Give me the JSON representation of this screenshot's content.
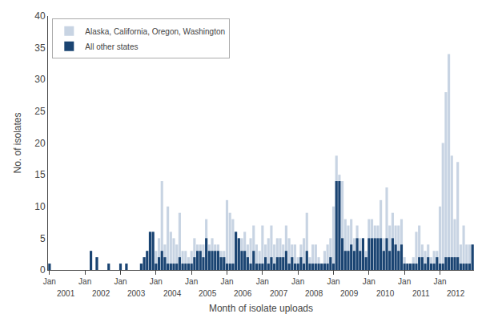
{
  "chart_data": {
    "type": "bar",
    "xlabel": "Month of isolate uploads",
    "ylabel": "No. of isolates",
    "categories": [
      "Jan",
      null,
      null,
      null,
      null,
      null,
      null,
      null,
      null,
      null,
      null,
      null,
      "Jan",
      null,
      null,
      null,
      null,
      null,
      null,
      null,
      null,
      null,
      null,
      null,
      "Jan",
      null,
      null,
      null,
      null,
      null,
      null,
      null,
      null,
      null,
      null,
      null,
      "Jan",
      null,
      null,
      null,
      null,
      null,
      null,
      null,
      null,
      null,
      null,
      null,
      "Jan",
      null,
      null,
      null,
      null,
      null,
      null,
      null,
      null,
      null,
      null,
      null,
      "Jan",
      null,
      null,
      null,
      null,
      null,
      null,
      null,
      null,
      null,
      null,
      null,
      "Jan",
      null,
      null,
      null,
      null,
      null,
      null,
      null,
      null,
      null,
      null,
      null,
      "Jan",
      null,
      null,
      null,
      null,
      null,
      null,
      null,
      null,
      null,
      null,
      null,
      "Jan",
      null,
      null,
      null,
      null,
      null,
      null,
      null,
      null,
      null,
      null,
      null,
      "Jan",
      null,
      null,
      null,
      null,
      null,
      null,
      null,
      null,
      null,
      null,
      null,
      "Jan",
      null,
      null,
      null,
      null,
      null,
      null,
      null,
      null,
      null,
      null,
      null,
      "Jan",
      null,
      null,
      null,
      null,
      null,
      null,
      null,
      null,
      null,
      null,
      null
    ],
    "annotations": [
      "2001",
      "2002",
      "2003",
      "2004",
      "2005",
      "2006",
      "2007",
      "2008",
      "2009",
      "2010",
      "2011",
      "2012"
    ],
    "series": [
      {
        "name": "Alaska, California, Oregon, Washington",
        "color": "#c8d4e3",
        "values": [
          1,
          0,
          0,
          0,
          0,
          0,
          0,
          0,
          0,
          0,
          0,
          0,
          0,
          0,
          3,
          0,
          2,
          0,
          0,
          0,
          1,
          0,
          0,
          0,
          1,
          0,
          1,
          0,
          0,
          0,
          0,
          1,
          2,
          3,
          6,
          6,
          3,
          5,
          14,
          4,
          10,
          6,
          5,
          4,
          9,
          3,
          3,
          2,
          3,
          5,
          4,
          4,
          4,
          8,
          4,
          5,
          4,
          4,
          3,
          3,
          11,
          9,
          8,
          6,
          5,
          5,
          6,
          4,
          5,
          7,
          4,
          3,
          7,
          4,
          5,
          7,
          4,
          5,
          5,
          4,
          7,
          5,
          4,
          4,
          2,
          4,
          5,
          9,
          2,
          4,
          4,
          2,
          1,
          3,
          4,
          5,
          10,
          18,
          15,
          14,
          8,
          7,
          8,
          5,
          7,
          5,
          5,
          3,
          8,
          8,
          7,
          7,
          11,
          5,
          13,
          7,
          9,
          7,
          7,
          8,
          2,
          1,
          1,
          2,
          6,
          7,
          4,
          3,
          4,
          2,
          3,
          3,
          10,
          20,
          28,
          34,
          18,
          8,
          17,
          4,
          7,
          4,
          4,
          4
        ]
      },
      {
        "name": "All other states",
        "color": "#1a4472",
        "values": [
          1,
          0,
          0,
          0,
          0,
          0,
          0,
          0,
          0,
          0,
          0,
          0,
          0,
          0,
          3,
          0,
          2,
          0,
          0,
          0,
          1,
          0,
          0,
          0,
          1,
          0,
          1,
          0,
          0,
          0,
          0,
          1,
          2,
          3,
          6,
          6,
          1,
          2,
          3,
          2,
          1,
          1,
          1,
          1,
          2,
          1,
          1,
          1,
          1,
          2,
          3,
          3,
          2,
          5,
          3,
          3,
          3,
          3,
          2,
          2,
          1,
          1,
          1,
          6,
          5,
          3,
          3,
          2,
          1,
          3,
          1,
          1,
          1,
          2,
          1,
          2,
          1,
          2,
          2,
          2,
          3,
          1,
          2,
          1,
          1,
          2,
          1,
          3,
          1,
          1,
          1,
          1,
          1,
          1,
          1,
          2,
          1,
          14,
          14,
          5,
          3,
          3,
          4,
          3,
          5,
          3,
          5,
          2,
          5,
          5,
          5,
          5,
          5,
          3,
          5,
          3,
          5,
          4,
          3,
          4,
          1,
          1,
          1,
          1,
          1,
          2,
          2,
          1,
          2,
          1,
          1,
          2,
          1,
          1,
          2,
          2,
          2,
          2,
          2,
          1,
          1,
          1,
          1,
          4
        ]
      }
    ],
    "ylim": [
      0,
      40
    ],
    "yticks": [
      0,
      5,
      10,
      15,
      20,
      25,
      30,
      35,
      40
    ],
    "stacked": false,
    "grid": false,
    "legend": "upper left"
  }
}
